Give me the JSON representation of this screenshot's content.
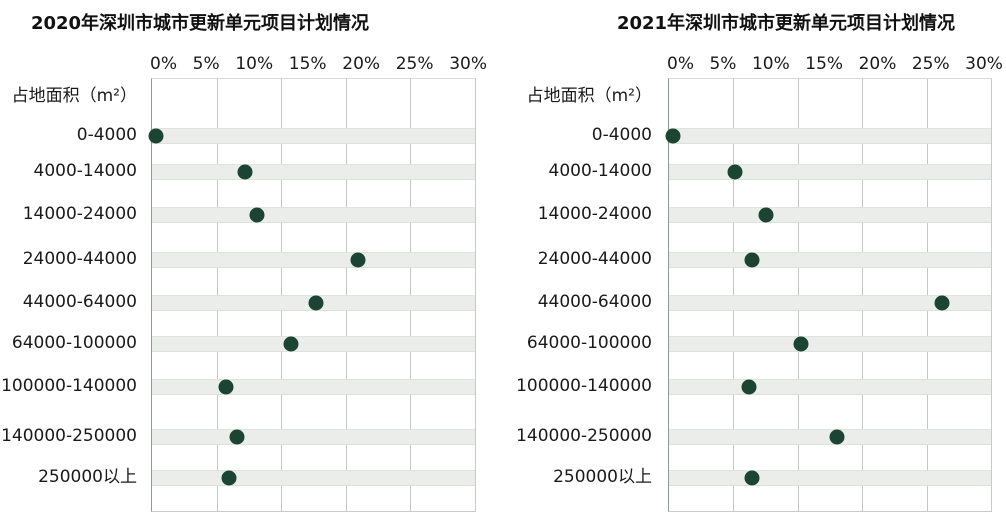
{
  "colors": {
    "dot": "#1c4433",
    "stripe": "#ebedeb",
    "gridline": "#c3c7c5",
    "axis_line": "#909a96",
    "text": "#1a1a1a",
    "background": "#ffffff"
  },
  "chart_data": [
    {
      "type": "scatter",
      "variant": "horizontal-dot-plot",
      "title": "2020年深圳市城市更新单元项目计划情况",
      "ylabel": "占地面积（m²）",
      "categories": [
        "0-4000",
        "4000-14000",
        "14000-24000",
        "24000-44000",
        "44000-64000",
        "64000-100000",
        "100000-140000",
        "140000-250000",
        "250000以上"
      ],
      "values_pct": [
        0.4,
        8.6,
        9.7,
        19.0,
        15.1,
        12.8,
        6.8,
        7.8,
        7.1
      ],
      "x_ticks": [
        "0%",
        "5%",
        "10%",
        "15%",
        "20%",
        "25%",
        "30%"
      ],
      "xlim": [
        0,
        30
      ],
      "x_axis_position": "top",
      "gridlines": "vertical, plot divided into 5 equal bands",
      "legend": "none"
    },
    {
      "type": "scatter",
      "variant": "horizontal-dot-plot",
      "title": "2021年深圳市城市更新单元项目计划情况",
      "ylabel": "占地面积（m²）",
      "categories": [
        "0-4000",
        "4000-14000",
        "14000-24000",
        "24000-44000",
        "44000-64000",
        "64000-100000",
        "100000-140000",
        "140000-250000",
        "250000以上"
      ],
      "values_pct": [
        0.4,
        6.1,
        9.0,
        7.7,
        25.3,
        12.2,
        7.4,
        15.6,
        7.7
      ],
      "x_ticks": [
        "0%",
        "5%",
        "10%",
        "15%",
        "20%",
        "25%",
        "30%"
      ],
      "xlim": [
        0,
        30
      ],
      "x_axis_position": "top",
      "gridlines": "vertical, plot divided into 5 equal bands",
      "legend": "none"
    }
  ]
}
